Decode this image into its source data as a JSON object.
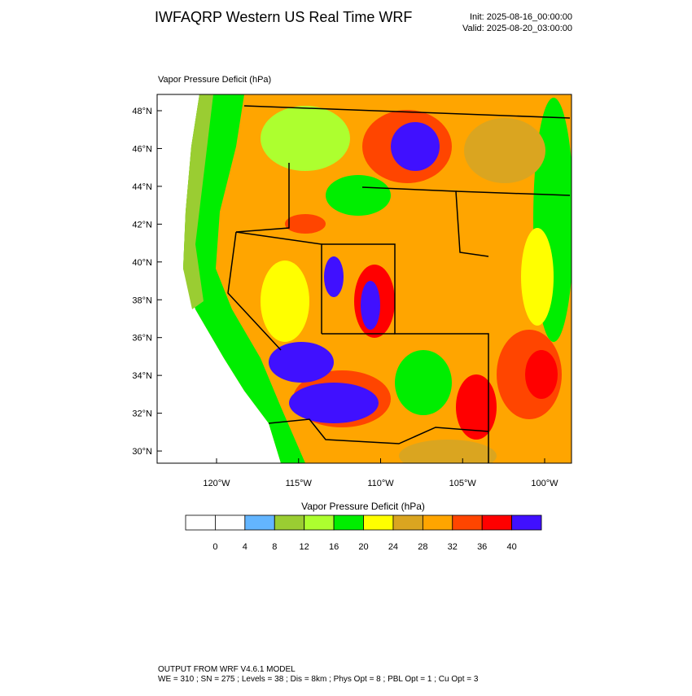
{
  "header": {
    "title": "IWFAQRP Western US Real Time WRF",
    "init": "Init: 2025-08-16_00:00:00",
    "valid": "Valid: 2025-08-20_03:00:00"
  },
  "map": {
    "field_label": "Vapor Pressure Deficit   (hPa)",
    "lat_labels": [
      "48°N",
      "46°N",
      "44°N",
      "42°N",
      "40°N",
      "38°N",
      "36°N",
      "34°N",
      "32°N",
      "30°N"
    ],
    "lon_labels": [
      "120°W",
      "115°W",
      "110°W",
      "105°W",
      "100°W"
    ]
  },
  "colorbar": {
    "title": "Vapor Pressure Deficit  (hPa)",
    "colors": [
      "#ffffff",
      "#ffffff",
      "#63b5ff",
      "#9acd32",
      "#adff2f",
      "#00ee00",
      "#ffff00",
      "#daa520",
      "#ffa500",
      "#ff4500",
      "#ff0000",
      "#4010ff"
    ],
    "labels": [
      0,
      4,
      8,
      12,
      16,
      20,
      24,
      28,
      32,
      36,
      40
    ]
  },
  "footer": {
    "lines": [
      "OUTPUT FROM WRF V4.6.1 MODEL",
      "WE = 310 ; SN = 275 ; Levels = 38 ; Dis = 8km ; Phys Opt = 8 ; PBL Opt = 1 ; Cu Opt = 3"
    ]
  }
}
